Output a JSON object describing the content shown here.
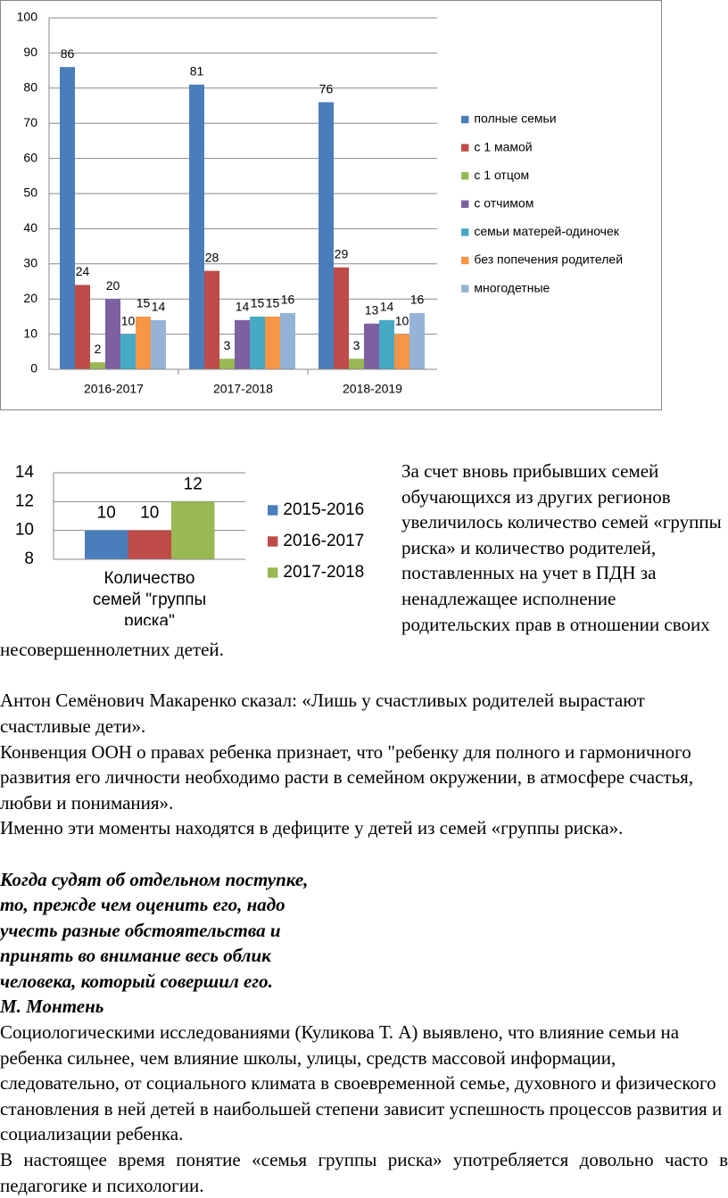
{
  "chart_data": [
    {
      "type": "bar",
      "categories": [
        "2016-2017",
        "2017-2018",
        "2018-2019"
      ],
      "series": [
        {
          "name": "полные семьи",
          "color": "#4a7ebb",
          "values": [
            86,
            81,
            76
          ]
        },
        {
          "name": "с 1 мамой",
          "color": "#be4b48",
          "values": [
            24,
            28,
            29
          ]
        },
        {
          "name": "с 1 отцом",
          "color": "#98b954",
          "values": [
            2,
            3,
            3
          ]
        },
        {
          "name": "с отчимом",
          "color": "#7d60a0",
          "values": [
            20,
            14,
            13
          ]
        },
        {
          "name": "семьи матерей-одиночек",
          "color": "#46aac5",
          "values": [
            10,
            15,
            14
          ]
        },
        {
          "name": "без попечения родителей",
          "color": "#f79646",
          "values": [
            15,
            15,
            10
          ]
        },
        {
          "name": "многодетные",
          "color": "#95b3d7",
          "values": [
            14,
            16,
            16
          ]
        }
      ],
      "ylim": [
        0,
        100
      ],
      "yticks": [
        0,
        10,
        20,
        30,
        40,
        50,
        60,
        70,
        80,
        90,
        100
      ],
      "grid": true,
      "legend": "right"
    },
    {
      "type": "bar",
      "categories": [
        "Количество семей \"группы риска\""
      ],
      "series": [
        {
          "name": "2015-2016",
          "color": "#4a7ebb",
          "values": [
            10
          ]
        },
        {
          "name": "2016-2017",
          "color": "#be4b48",
          "values": [
            10
          ]
        },
        {
          "name": "2017-2018",
          "color": "#98b954",
          "values": [
            12
          ]
        }
      ],
      "ylim": [
        8,
        14
      ],
      "yticks": [
        8,
        10,
        12,
        14
      ],
      "grid": true,
      "legend": "right"
    }
  ],
  "document": {
    "paragraphs": [
      "За счет вновь прибывших семей обучающихся из других регионов увеличилось количество семей «группы риска» и количество родителей, поставленных на учет в ПДН за ненадлежащее исполнение родительских прав в отношении своих несовершеннолетних детей.",
      "Антон Семёнович Макаренко сказал: «Лишь у счастливых родителей вырастают счастливые дети».",
      "Конвенция ООН о правах ребенка признает, что \"ребенку для полного и гармоничного развития его личности необходимо расти в семейном окружении, в атмосфере счастья, любви и понимания».",
      "Именно эти моменты находятся в дефиците у детей из семей «группы риска»."
    ],
    "epigraph": {
      "lines": [
        "Когда судят об отдельном поступке,",
        "то, прежде чем оценить его, надо",
        "учесть разные обстоятельства и",
        "принять во внимание весь облик",
        "человека, который совершил его."
      ],
      "author": "М. Монтень"
    },
    "closing": [
      "Социологическими исследованиями (Куликова Т. А) выявлено, что влияние семьи на ребенка сильнее, чем влияние школы, улицы, средств массовой информации, следовательно, от социального климата в своевременной семье, духовного и физического становления в ней детей в наибольшей степени зависит успешность процессов развития и социализации ребенка.",
      "В настоящее время понятие «семья группы риска» употребляется довольно часто в педагогике и психологии."
    ]
  }
}
